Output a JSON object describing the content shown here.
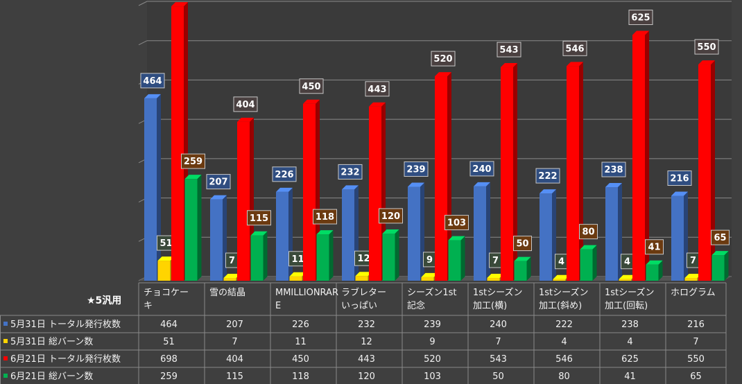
{
  "chart_data": {
    "type": "bar",
    "table_corner_label": "★5汎用",
    "categories": [
      [
        "チョコケー",
        "キ"
      ],
      [
        "雪の結晶"
      ],
      [
        "MMILLIONRAR",
        "E"
      ],
      [
        "ラブレター",
        "いっぱい"
      ],
      [
        "シーズン1st",
        "記念"
      ],
      [
        "1stシーズン",
        "加工(横)"
      ],
      [
        "1stシーズン",
        "加工(斜め)"
      ],
      [
        "1stシーズン",
        "加工(回転)"
      ],
      [
        "ホログラム"
      ]
    ],
    "series": [
      {
        "name": "5月31日 トータル発行枚数",
        "color": "#4472c4",
        "label_bg": "#2f4d80",
        "values": [
          464,
          207,
          226,
          232,
          239,
          240,
          222,
          238,
          216
        ]
      },
      {
        "name": "5月31日 総バーン数",
        "color": "#ffd400",
        "label_bg": "#3a4a3a",
        "values": [
          51,
          7,
          11,
          12,
          9,
          7,
          4,
          4,
          7
        ]
      },
      {
        "name": "6月21日 トータル発行枚数",
        "color": "#ff0000",
        "label_bg": "#4a4040",
        "values": [
          698,
          404,
          450,
          443,
          520,
          543,
          546,
          625,
          550
        ]
      },
      {
        "name": "6月21日 総バーン数",
        "color": "#00b050",
        "label_bg": "#6b3a10",
        "values": [
          259,
          115,
          118,
          120,
          103,
          50,
          80,
          41,
          65
        ]
      }
    ],
    "ylim": [
      0,
      700
    ],
    "grid": true,
    "legend": "table"
  }
}
